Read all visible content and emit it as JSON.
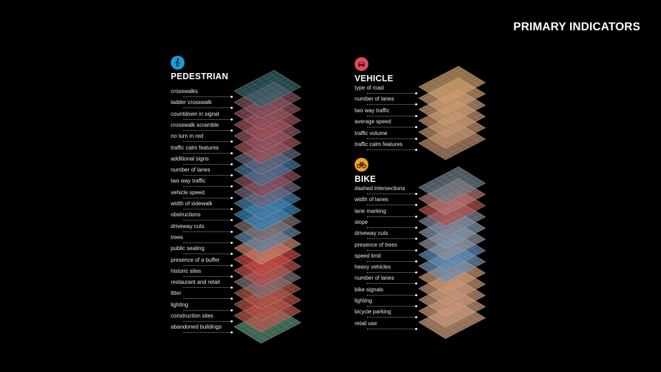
{
  "title": "PRIMARY INDICATORS",
  "sections": {
    "pedestrian": {
      "title": "PEDESTRIAN",
      "icon": "pedestrian-walking-icon",
      "icon_color": "#1f9ad6",
      "indicators": [
        "crosswalks",
        "ladder crosswalk",
        "countdown in signal",
        "crosswalk scramble",
        "no turn in red",
        "traffic calm features",
        "additional signs",
        "number of lanes",
        "two way traffic",
        "vehicle speed",
        "width of sidewalk",
        "obstructions",
        "driveway cuts",
        "trees",
        "public seating",
        "presence of a buffer",
        "historic sites",
        "restaurant and retail",
        "litter",
        "lighting",
        "construction sites",
        "abandoned buildings"
      ],
      "layer_colors": [
        "#2f5f6a",
        "#7a4a55",
        "#8a4a5a",
        "#9a4a52",
        "#8a4e5e",
        "#a04a50",
        "#5d5f7c",
        "#3d6f97",
        "#8a4454",
        "#6a5f7a",
        "#3a78a8",
        "#2f7eb4",
        "#7a6a6e",
        "#5a7ea0",
        "#c08066",
        "#c0403a",
        "#b84a44",
        "#7a6a74",
        "#a85040",
        "#b04a40",
        "#b8504a",
        "#4f8a70"
      ]
    },
    "vehicle": {
      "title": "VEHICLE",
      "icon": "car-icon",
      "icon_color": "#e14a5a",
      "indicators": [
        "type of road",
        "number of lanes",
        "two way traffic",
        "average speed",
        "traffic volume",
        "traffic calm features"
      ],
      "layer_colors": [
        "#c89a6a",
        "#c8966a",
        "#c49470",
        "#c09068",
        "#bc8c66",
        "#b88866"
      ]
    },
    "bike": {
      "title": "BIKE",
      "icon": "bicycle-icon",
      "icon_color": "#f0a030",
      "indicators": [
        "dashed intersections",
        "width of lanes",
        "lane marking",
        "slope",
        "driveway cuts",
        "presence of trees",
        "speed limit",
        "heavy vehicles",
        "number of lanes",
        "bike signals",
        "lighting",
        "bicycle parking",
        "retail use"
      ],
      "layer_colors": [
        "#6a7a86",
        "#b0706e",
        "#b04a4a",
        "#7a7f96",
        "#7a90a8",
        "#8a8e9a",
        "#5a86b4",
        "#6a8ab0",
        "#c8906e",
        "#c09070",
        "#c49074",
        "#c89474",
        "#cc9878"
      ]
    }
  }
}
